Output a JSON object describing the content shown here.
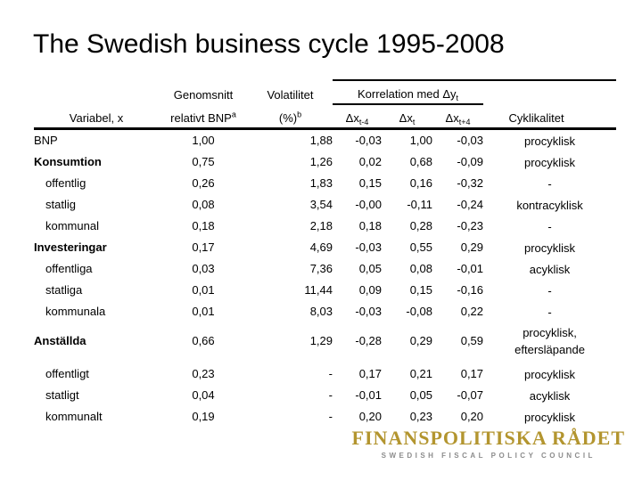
{
  "slide": {
    "title": "The Swedish business cycle 1995-2008"
  },
  "table": {
    "header": {
      "variabel": "Variabel, x",
      "genomsnitt_top": "Genomsnitt",
      "genomsnitt_bottom": "relativt BNP",
      "genomsnitt_note": "a",
      "volatilitet_top": "Volatilitet",
      "volatilitet_bottom": "(%)",
      "volatilitet_note": "b",
      "korrelation_base": "Korrelation med Δy",
      "korrelation_sub": "t",
      "dx_base": "Δx",
      "dx_subs": {
        "lag": "t-4",
        "now": "t",
        "lead": "t+4"
      },
      "cyklikalitet": "Cyklikalitet"
    },
    "rows": [
      {
        "label": "BNP",
        "style": "normal",
        "genomsnitt": "1,00",
        "volatilitet": "1,88",
        "x_tm4": "-0,03",
        "x_t": "1,00",
        "x_tp4": "-0,03",
        "cyklikalitet": "procyklisk"
      },
      {
        "label": "Konsumtion",
        "style": "section",
        "genomsnitt": "0,75",
        "volatilitet": "1,26",
        "x_tm4": "0,02",
        "x_t": "0,68",
        "x_tp4": "-0,09",
        "cyklikalitet": "procyklisk"
      },
      {
        "label": "offentlig",
        "style": "sub",
        "genomsnitt": "0,26",
        "volatilitet": "1,83",
        "x_tm4": "0,15",
        "x_t": "0,16",
        "x_tp4": "-0,32",
        "cyklikalitet": "-"
      },
      {
        "label": "statlig",
        "style": "sub",
        "genomsnitt": "0,08",
        "volatilitet": "3,54",
        "x_tm4": "-0,00",
        "x_t": "-0,11",
        "x_tp4": "-0,24",
        "cyklikalitet": "kontracyklisk"
      },
      {
        "label": "kommunal",
        "style": "sub",
        "genomsnitt": "0,18",
        "volatilitet": "2,18",
        "x_tm4": "0,18",
        "x_t": "0,28",
        "x_tp4": "-0,23",
        "cyklikalitet": "-"
      },
      {
        "label": "Investeringar",
        "style": "section",
        "genomsnitt": "0,17",
        "volatilitet": "4,69",
        "x_tm4": "-0,03",
        "x_t": "0,55",
        "x_tp4": "0,29",
        "cyklikalitet": "procyklisk"
      },
      {
        "label": "offentliga",
        "style": "sub",
        "genomsnitt": "0,03",
        "volatilitet": "7,36",
        "x_tm4": "0,05",
        "x_t": "0,08",
        "x_tp4": "-0,01",
        "cyklikalitet": "acyklisk"
      },
      {
        "label": "statliga",
        "style": "sub",
        "genomsnitt": "0,01",
        "volatilitet": "11,44",
        "x_tm4": "0,09",
        "x_t": "0,15",
        "x_tp4": "-0,16",
        "cyklikalitet": "-"
      },
      {
        "label": "kommunala",
        "style": "sub",
        "genomsnitt": "0,01",
        "volatilitet": "8,03",
        "x_tm4": "-0,03",
        "x_t": "-0,08",
        "x_tp4": "0,22",
        "cyklikalitet": "-"
      },
      {
        "label": "Anställda",
        "style": "section tall",
        "genomsnitt": "0,66",
        "volatilitet": "1,29",
        "x_tm4": "-0,28",
        "x_t": "0,29",
        "x_tp4": "0,59",
        "cyklikalitet": "procyklisk,\neftersläpande"
      },
      {
        "label": "offentligt",
        "style": "sub",
        "genomsnitt": "0,23",
        "volatilitet": "-",
        "x_tm4": "0,17",
        "x_t": "0,21",
        "x_tp4": "0,17",
        "cyklikalitet": "procyklisk"
      },
      {
        "label": "statligt",
        "style": "sub",
        "genomsnitt": "0,04",
        "volatilitet": "-",
        "x_tm4": "-0,01",
        "x_t": "0,05",
        "x_tp4": "-0,07",
        "cyklikalitet": "acyklisk"
      },
      {
        "label": "kommunalt",
        "style": "sub",
        "genomsnitt": "0,19",
        "volatilitet": "-",
        "x_tm4": "0,20",
        "x_t": "0,23",
        "x_tp4": "0,20",
        "cyklikalitet": "procyklisk"
      }
    ]
  },
  "footer_logo": {
    "name": "FINANSPOLITISKA RÅDET",
    "subtitle": "SWEDISH FISCAL POLICY COUNCIL",
    "name_color": "#B3952F",
    "subtitle_color": "#8C8C8C"
  }
}
